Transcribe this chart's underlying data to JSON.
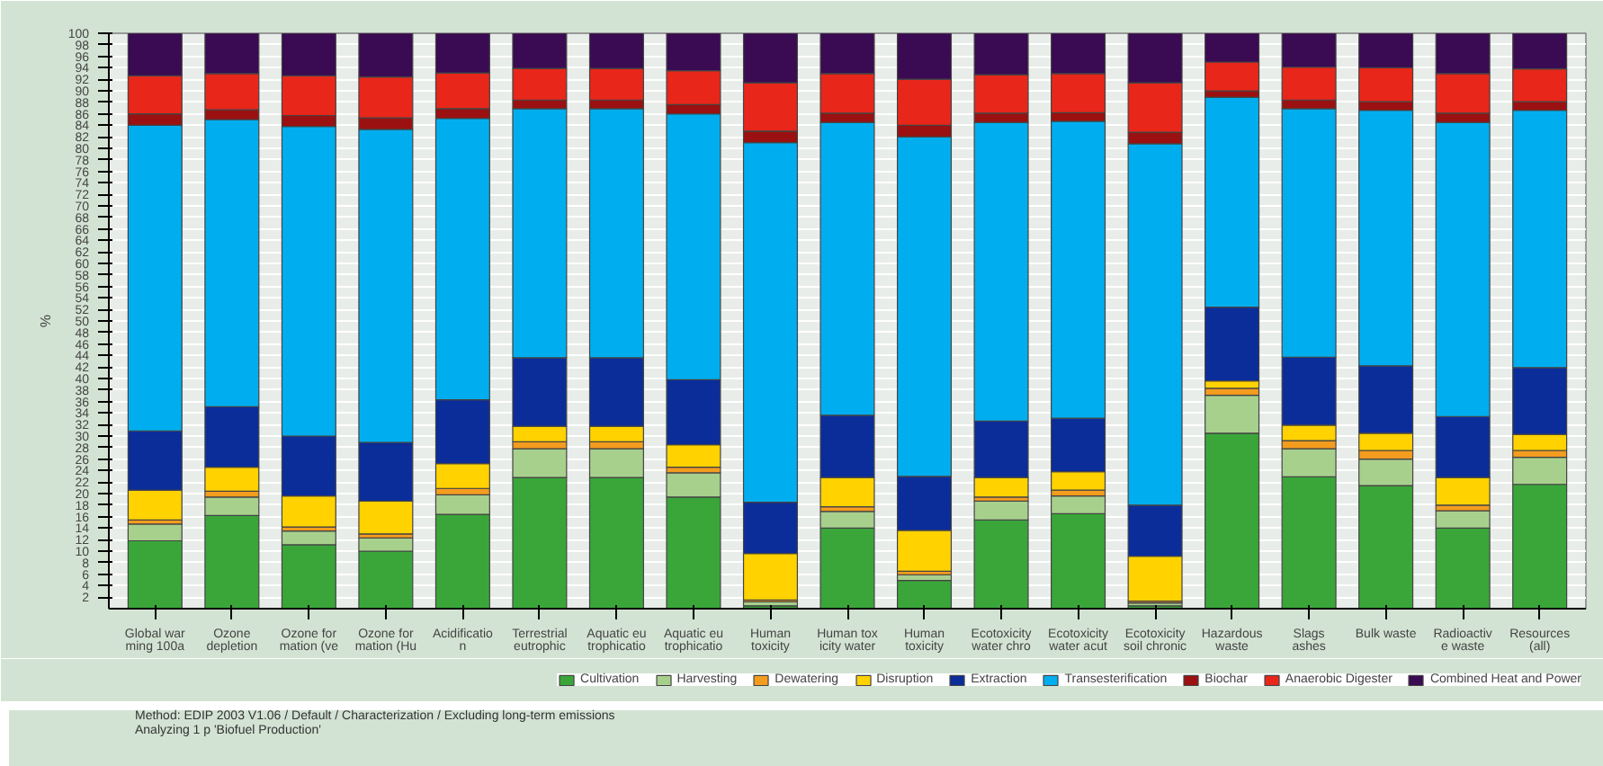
{
  "chart_data": {
    "type": "bar",
    "stacked": true,
    "ylabel": "%",
    "categories": [
      "Global war\nming 100a",
      "Ozone\ndepletion",
      "Ozone for\nmation (ve",
      "Ozone for\nmation (Hu",
      "Acidificatio\nn",
      "Terrestrial\neutrophic",
      "Aquatic eu\ntrophicatio",
      "Aquatic eu\ntrophicatio",
      "Human\ntoxicity",
      "Human tox\nicity water",
      "Human\ntoxicity",
      "Ecotoxicity\nwater chro",
      "Ecotoxicity\nwater acut",
      "Ecotoxicity\nsoil chronic",
      "Hazardous\nwaste",
      "Slags\nashes",
      "Bulk waste",
      "Radioactiv\ne waste",
      "Resources\n(all)"
    ],
    "series": [
      {
        "name": "Cultivation",
        "color": "#3aa63a",
        "values": [
          11.8,
          16.2,
          11.1,
          10.0,
          16.4,
          22.8,
          22.8,
          19.4,
          0.5,
          14.0,
          4.9,
          15.4,
          16.5,
          0.5,
          30.5,
          22.9,
          21.4,
          14.0,
          21.6
        ]
      },
      {
        "name": "Harvesting",
        "color": "#a8d08d",
        "values": [
          2.9,
          3.2,
          2.4,
          2.3,
          3.4,
          5.0,
          5.0,
          4.2,
          0.7,
          2.9,
          1.0,
          3.3,
          3.1,
          0.5,
          6.6,
          4.9,
          4.6,
          3.0,
          4.7
        ]
      },
      {
        "name": "Dewatering",
        "color": "#f39c1e",
        "values": [
          0.7,
          1.0,
          0.7,
          0.7,
          1.1,
          1.2,
          1.2,
          1.0,
          0.3,
          0.8,
          0.6,
          0.7,
          1.0,
          0.3,
          1.2,
          1.4,
          1.5,
          1.0,
          1.2
        ]
      },
      {
        "name": "Disruption",
        "color": "#ffd200",
        "values": [
          5.2,
          4.2,
          5.4,
          5.7,
          4.3,
          2.7,
          2.7,
          3.9,
          8.1,
          5.1,
          7.1,
          3.4,
          3.2,
          7.8,
          1.3,
          2.7,
          3.0,
          4.8,
          2.8
        ]
      },
      {
        "name": "Extraction",
        "color": "#0a2d9a",
        "values": [
          10.3,
          10.5,
          10.4,
          10.2,
          11.1,
          11.9,
          11.9,
          11.3,
          8.9,
          10.8,
          9.4,
          9.8,
          9.3,
          8.9,
          12.8,
          11.8,
          11.7,
          10.6,
          11.6
        ]
      },
      {
        "name": "Transesterification",
        "color": "#00aeef",
        "values": [
          53.1,
          49.9,
          53.8,
          54.4,
          48.9,
          43.3,
          43.3,
          46.2,
          62.5,
          50.9,
          59.0,
          51.9,
          51.6,
          62.8,
          36.5,
          43.2,
          44.4,
          51.1,
          44.7
        ]
      },
      {
        "name": "Biochar",
        "color": "#9b1010",
        "values": [
          2.0,
          1.7,
          1.9,
          2.0,
          1.7,
          1.5,
          1.5,
          1.6,
          2.0,
          1.6,
          2.0,
          1.6,
          1.5,
          2.0,
          1.1,
          1.5,
          1.5,
          1.6,
          1.5
        ]
      },
      {
        "name": "Anaerobic Digester",
        "color": "#e8261a",
        "values": [
          6.6,
          6.3,
          6.9,
          7.1,
          6.2,
          5.5,
          5.5,
          5.9,
          8.4,
          6.9,
          8.0,
          6.7,
          6.8,
          8.6,
          5.0,
          5.7,
          5.9,
          6.9,
          5.7
        ]
      },
      {
        "name": "Combined Heat and Power",
        "color": "#3a0a52",
        "values": [
          7.4,
          7.0,
          7.4,
          7.6,
          6.9,
          6.1,
          6.1,
          6.5,
          8.6,
          7.0,
          8.0,
          7.2,
          7.0,
          8.6,
          5.0,
          5.9,
          6.0,
          7.0,
          6.2
        ]
      }
    ],
    "ylim": [
      0,
      100
    ],
    "yticks": [
      2,
      4,
      6,
      8,
      10,
      12,
      14,
      16,
      18,
      20,
      22,
      24,
      26,
      28,
      30,
      32,
      34,
      36,
      38,
      40,
      42,
      44,
      46,
      48,
      50,
      52,
      54,
      56,
      58,
      60,
      62,
      64,
      66,
      68,
      70,
      72,
      74,
      76,
      78,
      80,
      82,
      84,
      86,
      88,
      90,
      92,
      94,
      96,
      98,
      100
    ],
    "grid": "y",
    "legend": "bottom",
    "annotations": [
      "Method: EDIP 2003 V1.06 / Default / Characterization / Excluding long-term emissions",
      "Analyzing 1 p 'Biofuel Production'"
    ]
  }
}
